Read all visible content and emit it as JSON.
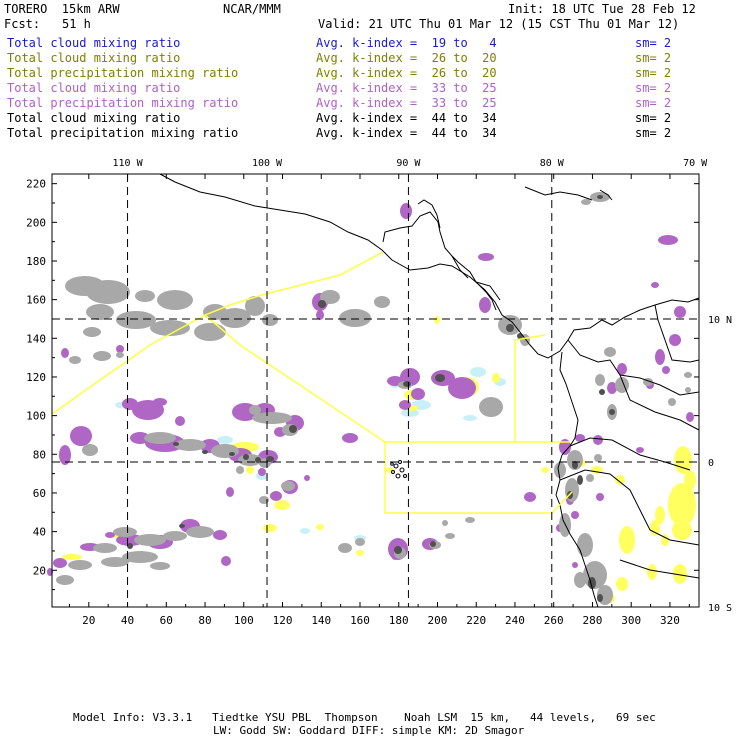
{
  "header": {
    "model": "TORERO  15km ARW",
    "org": "NCAR/MMM",
    "init": "Init: 18 UTC Tue 28 Feb 12",
    "fcst_label": "Fcst:",
    "fcst_value": "51 h",
    "valid": "Valid: 21 UTC Thu 01 Mar 12 (15 CST Thu 01 Mar 12)"
  },
  "legend": [
    {
      "field": "Total cloud mixing ratio",
      "kindex": "Avg. k-index =  19 to   4",
      "sm": "sm= 2",
      "color": "#1a1acc"
    },
    {
      "field": "Total cloud mixing ratio",
      "kindex": "Avg. k-index =  26 to  20",
      "sm": "sm= 2",
      "color": "#808000"
    },
    {
      "field": "Total precipitation mixing ratio",
      "kindex": "Avg. k-index =  26 to  20",
      "sm": "sm= 2",
      "color": "#808000"
    },
    {
      "field": "Total cloud mixing ratio",
      "kindex": "Avg. k-index =  33 to  25",
      "sm": "sm= 2",
      "color": "#b060c8"
    },
    {
      "field": "Total precipitation mixing ratio",
      "kindex": "Avg. k-index =  33 to  25",
      "sm": "sm= 2",
      "color": "#b060c8"
    },
    {
      "field": "Total cloud mixing ratio",
      "kindex": "Avg. k-index =  44 to  34",
      "sm": "sm= 2",
      "color": "#000000"
    },
    {
      "field": "Total precipitation mixing ratio",
      "kindex": "Avg. k-index =  44 to  34",
      "sm": "sm= 2",
      "color": "#000000"
    }
  ],
  "footer": {
    "line1": "Model Info: V3.3.1   Tiedtke YSU PBL  Thompson    Noah LSM  15 km,   44 levels,   69 sec",
    "line2": "LW: Godd SW: Goddard DIFF: simple KM: 2D Smagor"
  },
  "chart_data": {
    "type": "map",
    "x_grid_range": [
      1,
      335
    ],
    "y_grid_range": [
      1,
      225
    ],
    "x_ticks": [
      20,
      40,
      60,
      80,
      100,
      120,
      140,
      160,
      180,
      200,
      220,
      240,
      260,
      280,
      300,
      320
    ],
    "y_ticks": [
      20,
      40,
      60,
      80,
      100,
      120,
      140,
      160,
      180,
      200,
      220
    ],
    "lon_labels": [
      {
        "label": "110 W",
        "x": 40
      },
      {
        "label": "100 W",
        "x": 112
      },
      {
        "label": "90 W",
        "x": 185
      },
      {
        "label": "80 W",
        "x": 259
      },
      {
        "label": "70 W",
        "x": 333
      }
    ],
    "lat_labels": [
      {
        "label": "10 N",
        "y": 150
      },
      {
        "label": "0",
        "y": 76
      },
      {
        "label": "10 S",
        "y": 1
      }
    ],
    "colors": {
      "gray": "#a8a8a8",
      "dark": "#505050",
      "purple": "#b066c4",
      "yellow": "#ffff60",
      "cyan": "#c8f0f8",
      "domain": "#ffff40"
    }
  }
}
